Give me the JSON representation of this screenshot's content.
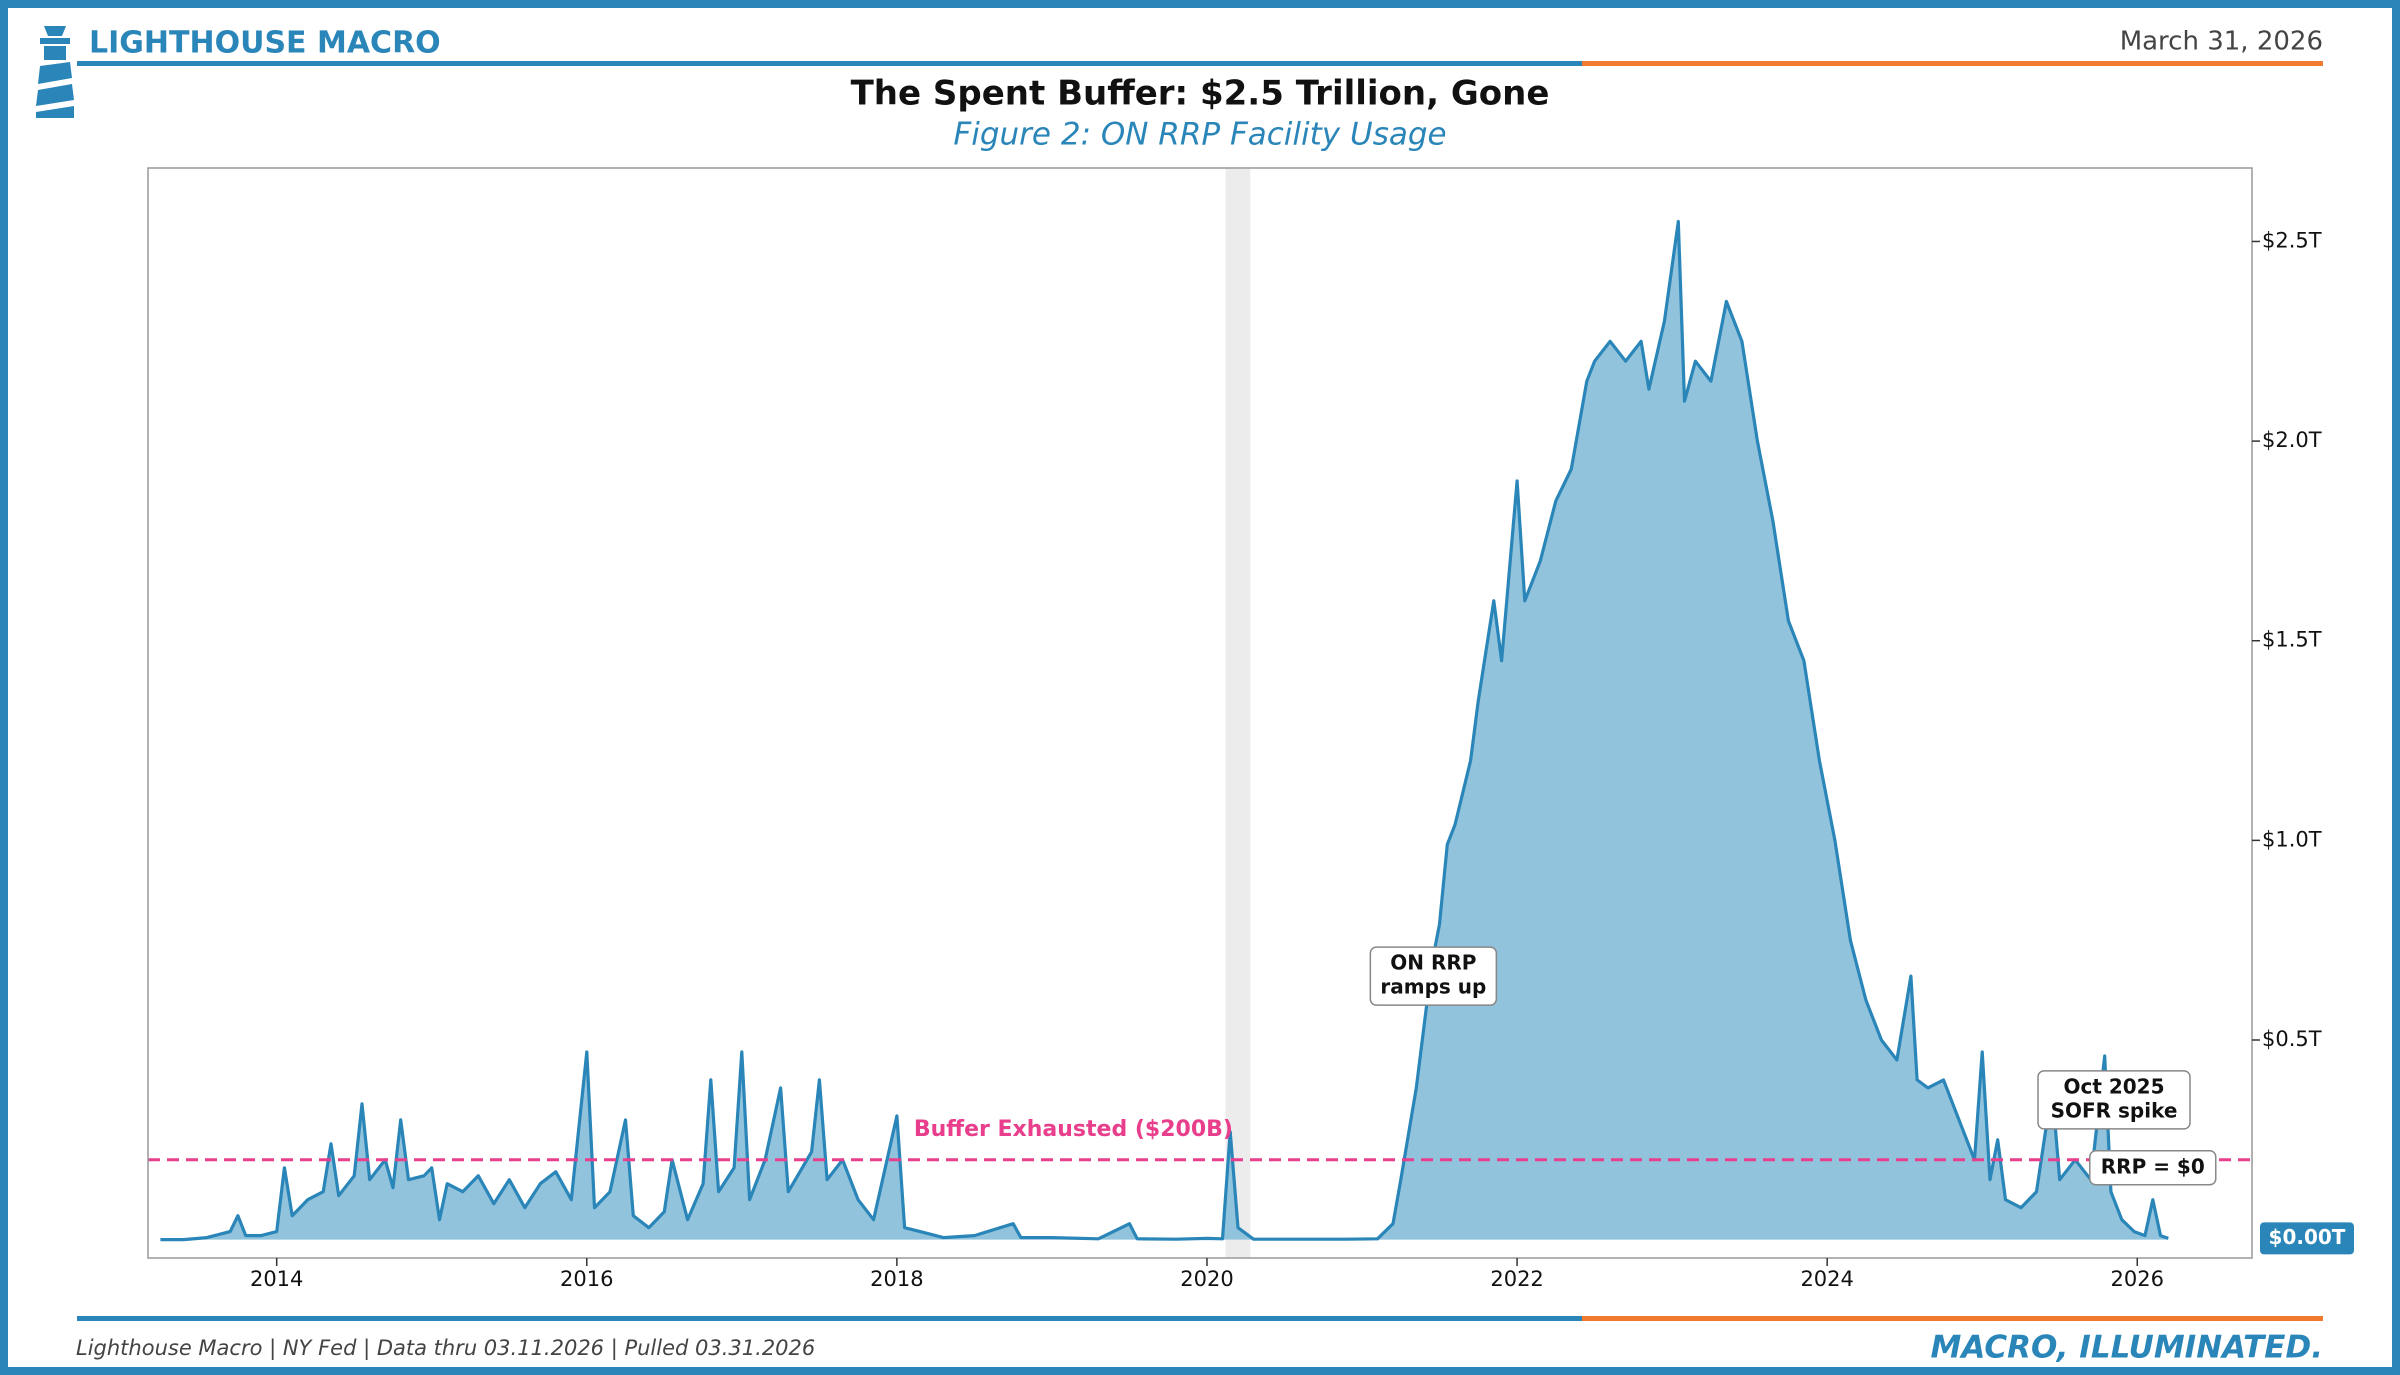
{
  "header": {
    "brand": "LIGHTHOUSE MACRO",
    "date": "March 31, 2026"
  },
  "footer": {
    "source": "Lighthouse Macro | NY Fed | Data thru 03.11.2026 | Pulled 03.31.2026",
    "tagline": "MACRO, ILLUMINATED."
  },
  "chart_data": {
    "type": "area",
    "title": "The Spent Buffer: $2.5 Trillion, Gone",
    "subtitle": "Figure 2: ON RRP Facility Usage",
    "line_color": "#2a85b8",
    "fill_color": "#92c3dc",
    "x": [
      2013.25,
      2013.4,
      2013.55,
      2013.7,
      2013.75,
      2013.8,
      2013.9,
      2014.0,
      2014.05,
      2014.1,
      2014.2,
      2014.3,
      2014.35,
      2014.4,
      2014.5,
      2014.55,
      2014.6,
      2014.7,
      2014.75,
      2014.8,
      2014.85,
      2014.95,
      2015.0,
      2015.05,
      2015.1,
      2015.2,
      2015.3,
      2015.4,
      2015.5,
      2015.6,
      2015.7,
      2015.8,
      2015.9,
      2016.0,
      2016.05,
      2016.15,
      2016.25,
      2016.3,
      2016.4,
      2016.5,
      2016.55,
      2016.65,
      2016.75,
      2016.8,
      2016.85,
      2016.95,
      2017.0,
      2017.05,
      2017.15,
      2017.25,
      2017.3,
      2017.45,
      2017.5,
      2017.55,
      2017.65,
      2017.75,
      2017.85,
      2018.0,
      2018.05,
      2018.15,
      2018.3,
      2018.5,
      2018.75,
      2018.8,
      2019.0,
      2019.3,
      2019.5,
      2019.55,
      2019.8,
      2020.0,
      2020.1,
      2020.15,
      2020.2,
      2020.3,
      2020.6,
      2020.9,
      2021.1,
      2021.2,
      2021.25,
      2021.35,
      2021.45,
      2021.5,
      2021.55,
      2021.6,
      2021.7,
      2021.75,
      2021.85,
      2021.9,
      2022.0,
      2022.05,
      2022.15,
      2022.25,
      2022.35,
      2022.45,
      2022.5,
      2022.6,
      2022.7,
      2022.8,
      2022.85,
      2022.95,
      2023.04,
      2023.08,
      2023.15,
      2023.25,
      2023.35,
      2023.45,
      2023.55,
      2023.65,
      2023.75,
      2023.85,
      2023.95,
      2024.05,
      2024.15,
      2024.25,
      2024.35,
      2024.45,
      2024.54,
      2024.58,
      2024.65,
      2024.75,
      2024.85,
      2024.95,
      2025.0,
      2025.05,
      2025.1,
      2025.15,
      2025.25,
      2025.35,
      2025.45,
      2025.5,
      2025.6,
      2025.7,
      2025.79,
      2025.83,
      2025.9,
      2025.98,
      2026.05,
      2026.1,
      2026.15,
      2026.2
    ],
    "values": [
      0.0,
      0.0,
      0.005,
      0.02,
      0.06,
      0.01,
      0.01,
      0.02,
      0.18,
      0.06,
      0.1,
      0.12,
      0.24,
      0.11,
      0.16,
      0.34,
      0.15,
      0.2,
      0.13,
      0.3,
      0.15,
      0.16,
      0.18,
      0.05,
      0.14,
      0.12,
      0.16,
      0.09,
      0.15,
      0.08,
      0.14,
      0.17,
      0.1,
      0.47,
      0.08,
      0.12,
      0.3,
      0.06,
      0.03,
      0.07,
      0.2,
      0.05,
      0.14,
      0.4,
      0.12,
      0.18,
      0.47,
      0.1,
      0.2,
      0.38,
      0.12,
      0.22,
      0.4,
      0.15,
      0.2,
      0.1,
      0.05,
      0.31,
      0.03,
      0.02,
      0.005,
      0.01,
      0.04,
      0.005,
      0.005,
      0.002,
      0.04,
      0.002,
      0.001,
      0.003,
      0.002,
      0.27,
      0.03,
      0.001,
      0.001,
      0.001,
      0.002,
      0.04,
      0.15,
      0.38,
      0.69,
      0.79,
      0.99,
      1.04,
      1.2,
      1.35,
      1.6,
      1.45,
      1.9,
      1.6,
      1.7,
      1.85,
      1.93,
      2.15,
      2.2,
      2.25,
      2.2,
      2.25,
      2.13,
      2.3,
      2.55,
      2.1,
      2.2,
      2.15,
      2.35,
      2.25,
      2.0,
      1.8,
      1.55,
      1.45,
      1.2,
      1.0,
      0.75,
      0.6,
      0.5,
      0.45,
      0.66,
      0.4,
      0.38,
      0.4,
      0.3,
      0.2,
      0.47,
      0.15,
      0.25,
      0.1,
      0.08,
      0.12,
      0.38,
      0.15,
      0.2,
      0.15,
      0.46,
      0.12,
      0.05,
      0.02,
      0.01,
      0.1,
      0.01,
      0.003
    ],
    "xlim": [
      2013.17,
      2026.74
    ],
    "ylim": [
      -0.046,
      2.684
    ],
    "xticks": [
      2014,
      2016,
      2018,
      2020,
      2022,
      2024,
      2026
    ],
    "yticks": [
      {
        "value": 0.5,
        "label": "$0.5T"
      },
      {
        "value": 1.0,
        "label": "$1.0T"
      },
      {
        "value": 1.5,
        "label": "$1.5T"
      },
      {
        "value": 2.0,
        "label": "$2.0T"
      },
      {
        "value": 2.5,
        "label": "$2.5T"
      }
    ],
    "end_label": {
      "value": 0.003,
      "label": "$0.00T"
    },
    "shade": [
      2020.12,
      2020.28
    ],
    "threshold": {
      "value": 0.2,
      "label": "Buffer Exhausted ($200B)",
      "color": "#e83e8c"
    },
    "annotations": [
      {
        "lines": [
          "ON RRP",
          "ramps up"
        ],
        "x": 2021.46,
        "y": 0.66
      },
      {
        "lines": [
          "Oct 2025",
          "SOFR spike"
        ],
        "x": 2025.85,
        "y": 0.35
      },
      {
        "lines": [
          "RRP = $0"
        ],
        "x": 2026.1,
        "y": 0.18
      }
    ],
    "grid": false
  }
}
